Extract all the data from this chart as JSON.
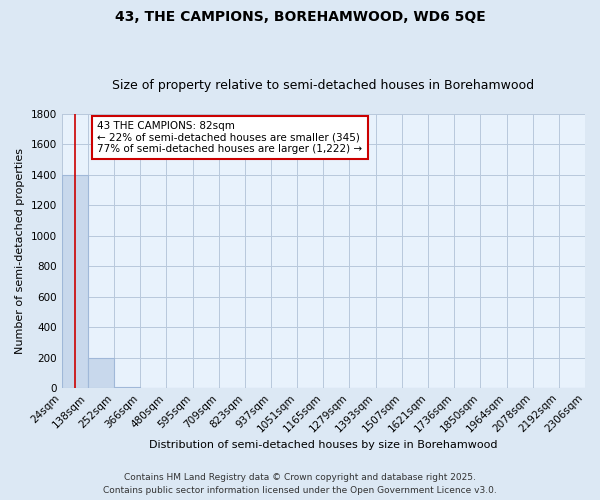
{
  "title": "43, THE CAMPIONS, BOREHAMWOOD, WD6 5QE",
  "subtitle": "Size of property relative to semi-detached houses in Borehamwood",
  "xlabel": "Distribution of semi-detached houses by size in Borehamwood",
  "ylabel": "Number of semi-detached properties",
  "bin_edges": [
    24,
    138,
    252,
    366,
    480,
    595,
    709,
    823,
    937,
    1051,
    1165,
    1279,
    1393,
    1507,
    1621,
    1736,
    1850,
    1964,
    2078,
    2192,
    2306
  ],
  "bar_heights": [
    1400,
    200,
    10,
    0,
    0,
    0,
    0,
    0,
    0,
    0,
    0,
    0,
    0,
    0,
    0,
    0,
    0,
    0,
    0,
    0
  ],
  "bar_color": "#c8d8ec",
  "bar_edge_color": "#a0b8d8",
  "ylim": [
    0,
    1800
  ],
  "property_size": 82,
  "property_line_color": "#cc0000",
  "annotation_line1": "43 THE CAMPIONS: 82sqm",
  "annotation_line2": "← 22% of semi-detached houses are smaller (345)",
  "annotation_line3": "77% of semi-detached houses are larger (1,222) →",
  "annotation_box_color": "#ffffff",
  "annotation_border_color": "#cc0000",
  "footer_line1": "Contains HM Land Registry data © Crown copyright and database right 2025.",
  "footer_line2": "Contains public sector information licensed under the Open Government Licence v3.0.",
  "bg_color": "#dce8f4",
  "plot_bg_color": "#e8f2fc",
  "grid_color": "#b8c8dc",
  "title_fontsize": 10,
  "subtitle_fontsize": 9,
  "axis_label_fontsize": 8,
  "tick_label_fontsize": 7.5,
  "footer_fontsize": 6.5,
  "ytick_values": [
    0,
    200,
    400,
    600,
    800,
    1000,
    1200,
    1400,
    1600,
    1800
  ]
}
